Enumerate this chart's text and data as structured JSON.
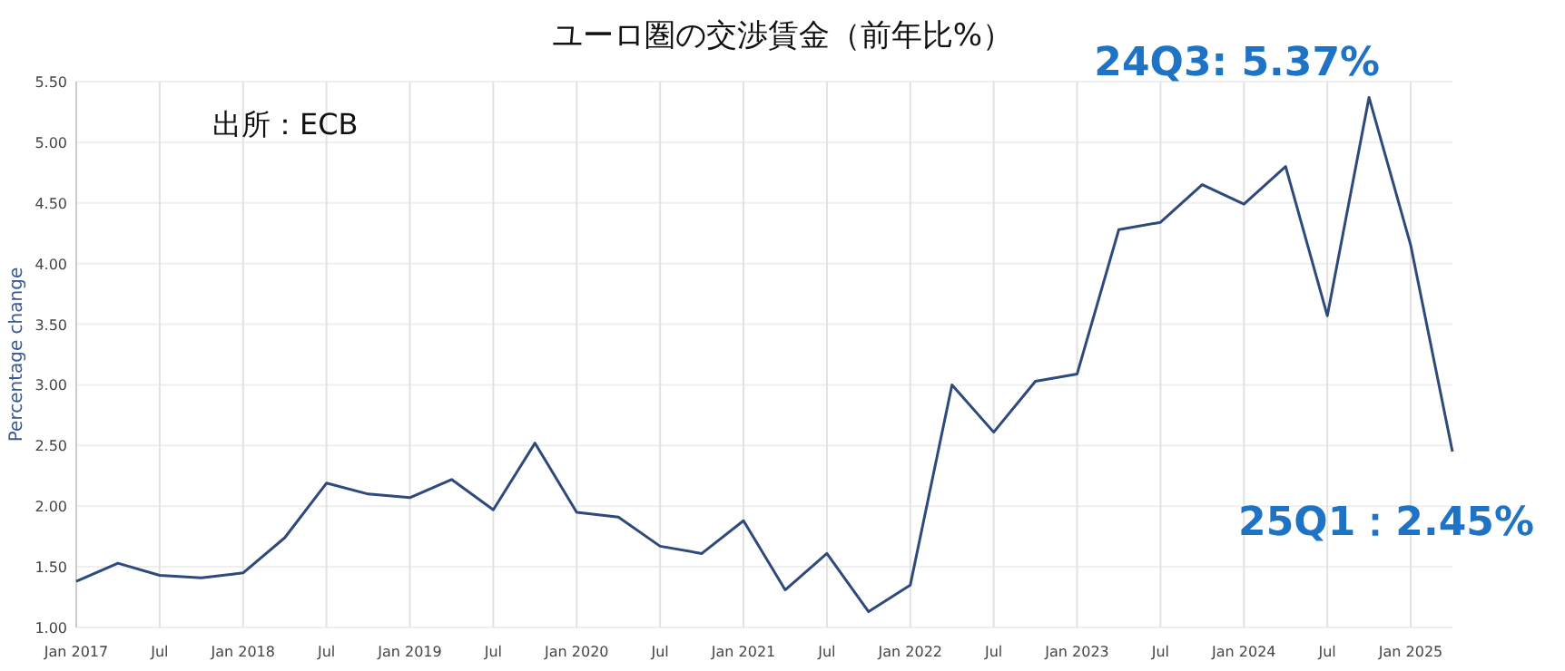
{
  "chart_data": {
    "type": "line",
    "title": "ユーロ圏の交渉賃金（前年比%）",
    "ylabel": "Percentage change",
    "annotations": [
      "出所：ECB",
      {
        "text": "24Q3:  5.37%",
        "x": "2024-10",
        "y": 5.37
      },
      {
        "text": "25Q1：2.45%",
        "x": "2025-04",
        "y": 2.45
      }
    ],
    "x": [
      "2017-01",
      "2017-04",
      "2017-07",
      "2017-10",
      "2018-01",
      "2018-04",
      "2018-07",
      "2018-10",
      "2019-01",
      "2019-04",
      "2019-07",
      "2019-10",
      "2020-01",
      "2020-04",
      "2020-07",
      "2020-10",
      "2021-01",
      "2021-04",
      "2021-07",
      "2021-10",
      "2022-01",
      "2022-04",
      "2022-07",
      "2022-10",
      "2023-01",
      "2023-04",
      "2023-07",
      "2023-10",
      "2024-01",
      "2024-04",
      "2024-07",
      "2024-10",
      "2025-01",
      "2025-04"
    ],
    "series": [
      {
        "color": "#2e4a7d",
        "values": [
          1.38,
          1.53,
          1.43,
          1.41,
          1.45,
          1.74,
          2.19,
          2.1,
          2.07,
          2.22,
          1.97,
          2.52,
          1.95,
          1.91,
          1.67,
          1.61,
          1.88,
          1.31,
          1.61,
          1.13,
          1.35,
          3.0,
          2.61,
          3.03,
          3.09,
          4.28,
          4.34,
          4.65,
          4.49,
          4.8,
          3.57,
          5.37,
          4.15,
          2.45
        ]
      }
    ],
    "xlim": [
      "2017-01",
      "2025-04"
    ],
    "xticks": [
      {
        "value": "2017-01",
        "label": "Jan 2017"
      },
      {
        "value": "2017-07",
        "label": "Jul"
      },
      {
        "value": "2018-01",
        "label": "Jan 2018"
      },
      {
        "value": "2018-07",
        "label": "Jul"
      },
      {
        "value": "2019-01",
        "label": "Jan 2019"
      },
      {
        "value": "2019-07",
        "label": "Jul"
      },
      {
        "value": "2020-01",
        "label": "Jan 2020"
      },
      {
        "value": "2020-07",
        "label": "Jul"
      },
      {
        "value": "2021-01",
        "label": "Jan 2021"
      },
      {
        "value": "2021-07",
        "label": "Jul"
      },
      {
        "value": "2022-01",
        "label": "Jan 2022"
      },
      {
        "value": "2022-07",
        "label": "Jul"
      },
      {
        "value": "2023-01",
        "label": "Jan 2023"
      },
      {
        "value": "2023-07",
        "label": "Jul"
      },
      {
        "value": "2024-01",
        "label": "Jan 2024"
      },
      {
        "value": "2024-07",
        "label": "Jul"
      },
      {
        "value": "2025-01",
        "label": "Jan 2025"
      }
    ],
    "ylim": [
      1,
      5.5
    ],
    "yticks": [
      {
        "value": 1,
        "label": "1.00"
      },
      {
        "value": 1.5,
        "label": "1.50"
      },
      {
        "value": 2,
        "label": "2.00"
      },
      {
        "value": 2.5,
        "label": "2.50"
      },
      {
        "value": 3,
        "label": "3.00"
      },
      {
        "value": 3.5,
        "label": "3.50"
      },
      {
        "value": 4,
        "label": "4.00"
      },
      {
        "value": 4.5,
        "label": "4.50"
      },
      {
        "value": 5,
        "label": "5.00"
      },
      {
        "value": 5.5,
        "label": "5.50"
      }
    ],
    "grid": true,
    "marker": "none",
    "line_style": "solid"
  }
}
